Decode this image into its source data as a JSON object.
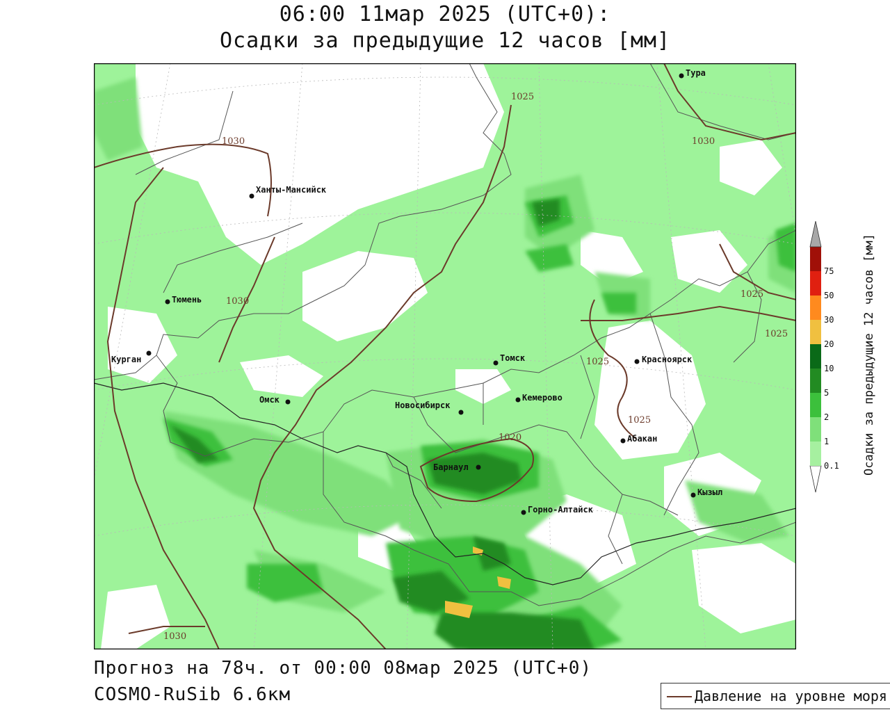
{
  "header": {
    "line1": "06:00 11мар 2025 (UTC+0):",
    "line2": "Осадки за предыдущие 12 часов [мм]"
  },
  "footer": {
    "forecast": "Прогноз на 78ч. от 00:00 08мар 2025 (UTC+0)",
    "model": "COSMO-RuSib 6.6км"
  },
  "legend": {
    "label": "Давление на уровне моря",
    "line_color": "#6b3a2a"
  },
  "colorbar": {
    "title": "Осадки за предыдущие 12 часов [мм]",
    "levels": [
      "0.1",
      "1",
      "2",
      "5",
      "10",
      "20",
      "30",
      "50",
      "75"
    ],
    "colors": [
      "#a6f0a0",
      "#7fe07a",
      "#3cc03c",
      "#228b22",
      "#0a6a18",
      "#f0c040",
      "#ff8a1e",
      "#e02010",
      "#a01008",
      "#a8a8a8"
    ]
  },
  "cities": [
    {
      "name": "Тура"
    },
    {
      "name": "Ханты-Мансийск"
    },
    {
      "name": "Тюмень"
    },
    {
      "name": "Курган"
    },
    {
      "name": "Омск"
    },
    {
      "name": "Томск"
    },
    {
      "name": "Новосибирск"
    },
    {
      "name": "Кемерово"
    },
    {
      "name": "Красноярск"
    },
    {
      "name": "Абакан"
    },
    {
      "name": "Барнаул"
    },
    {
      "name": "Горно-Алтайск"
    },
    {
      "name": "Кызыл"
    }
  ],
  "isobars": [
    "1030",
    "1030",
    "1030",
    "1025",
    "1025",
    "1025",
    "1025",
    "1025",
    "1020",
    "1030"
  ]
}
